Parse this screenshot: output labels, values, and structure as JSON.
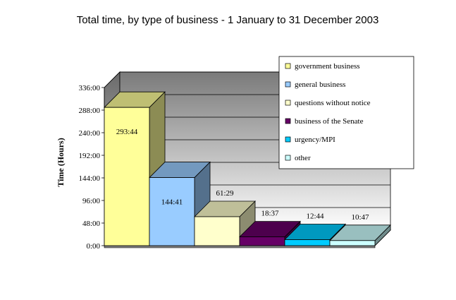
{
  "chart_data": {
    "type": "bar",
    "title": "Total time, by type of business - 1 January to 31 December 2003",
    "ylabel": "Time (Hours)",
    "xlabel": "",
    "ylim": [
      0,
      336
    ],
    "y_ticks": [
      0,
      48,
      96,
      144,
      192,
      240,
      288,
      336
    ],
    "y_tick_labels": [
      "0:00",
      "48:00",
      "96:00",
      "144:00",
      "192:00",
      "240:00",
      "288:00",
      "336:00"
    ],
    "grid": true,
    "legend_position": "top-right",
    "categories": [
      "government business",
      "general business",
      "questions without notice",
      "business of the Senate",
      "urgency/MPI",
      "other"
    ],
    "values": [
      293.733,
      144.683,
      61.483,
      18.617,
      12.733,
      10.783
    ],
    "data_labels": [
      "293:44",
      "144:41",
      "61:29",
      "18:37",
      "12:44",
      "10:47"
    ],
    "colors": [
      "#ffff99",
      "#99ccff",
      "#ffffcc",
      "#660066",
      "#00ccff",
      "#ccffff"
    ]
  }
}
